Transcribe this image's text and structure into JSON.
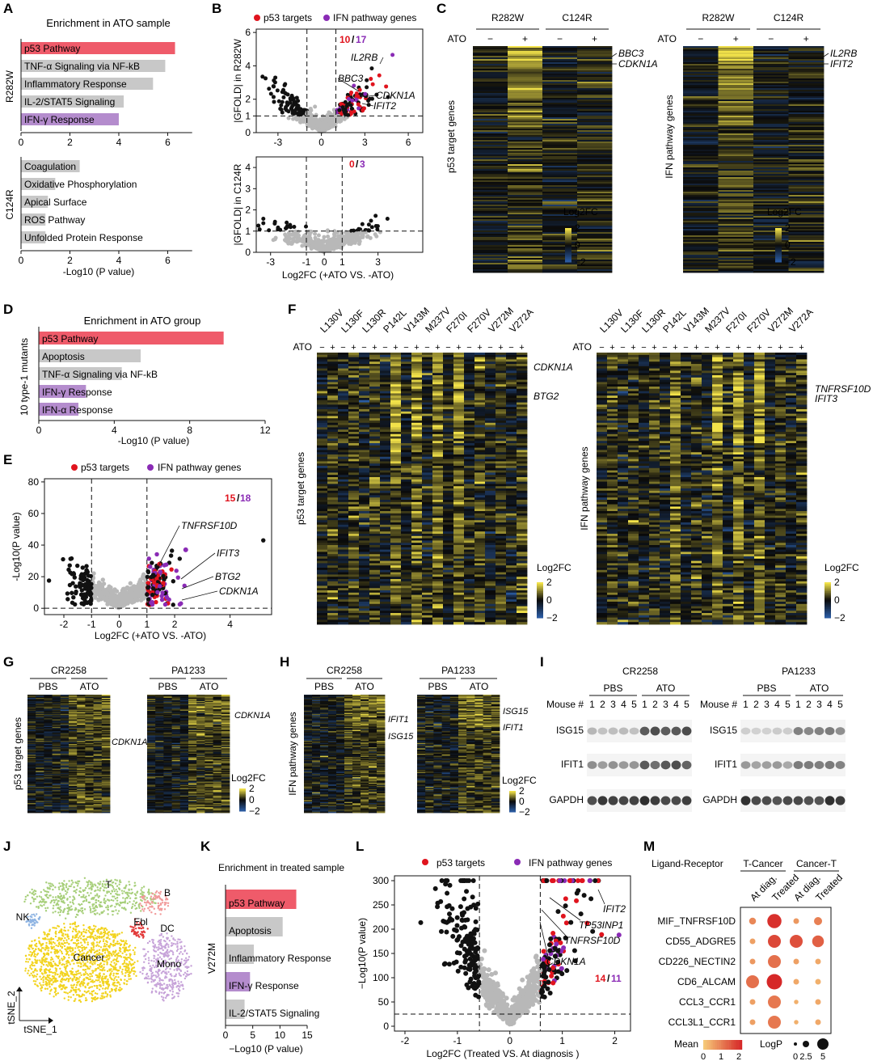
{
  "panel_letters": [
    "A",
    "B",
    "C",
    "D",
    "E",
    "F",
    "G",
    "H",
    "I",
    "J",
    "K",
    "L",
    "M"
  ],
  "colors": {
    "red_bar": "#ef5b6a",
    "gray_bar": "#c8c8c8",
    "purple_bar": "#b48ccd",
    "p53_point": "#e0141e",
    "ifn_point": "#8a2bb5",
    "other_point": "#b8b8b8",
    "sig_point": "#111111",
    "heat_low": "#2a5aa0",
    "heat_mid": "#0a0a0a",
    "heat_high": "#f2e24a"
  },
  "chart_data": [
    {
      "id": "A",
      "type": "bar",
      "title": "Enrichment in ATO sample",
      "xlabel": "-Log10 (P value)",
      "xlim": [
        0,
        7
      ],
      "xticks": [
        0,
        2,
        4,
        6
      ],
      "groups": [
        {
          "name": "R282W",
          "categories": [
            "p53 Pathway",
            "TNF-α Signaling via NF-kB",
            "Inflammatory Response",
            "IL-2/STAT5 Signaling",
            "IFN-γ Response"
          ],
          "values": [
            6.3,
            5.9,
            5.4,
            4.2,
            4.0
          ],
          "colors": [
            "red",
            "gray",
            "gray",
            "gray",
            "purple"
          ]
        },
        {
          "name": "C124R",
          "categories": [
            "Coagulation",
            "Oxidative Phosphorylation",
            "Apical Surface",
            "ROS Pathway",
            "Unfolded Protein Response"
          ],
          "values": [
            2.4,
            1.4,
            1.1,
            1.0,
            1.0
          ],
          "colors": [
            "gray",
            "gray",
            "gray",
            "gray",
            "gray"
          ]
        }
      ]
    },
    {
      "id": "B",
      "type": "scatter",
      "legend": [
        "p53 targets",
        "IFN pathway genes"
      ],
      "xlabel": "Log2FC (+ATO VS. -ATO)",
      "plots": [
        {
          "ylabel": "|GFOLD| in R282W",
          "xlim": [
            -4.5,
            7
          ],
          "ylim": [
            0,
            6.2
          ],
          "xticks": [
            -3,
            0,
            3,
            6
          ],
          "yticks": [
            0,
            1,
            2,
            4,
            6
          ],
          "hline": 1,
          "vlines": [
            -1,
            1
          ],
          "count_p53": "10",
          "count_sep": "/",
          "count_ifn": "17",
          "labels": [
            "BBC3",
            "CDKN1A",
            "IL2RB",
            "IFIT2"
          ]
        },
        {
          "ylabel": "|GFOLD| in C124R",
          "xlim": [
            -3.8,
            5.5
          ],
          "ylim": [
            0,
            4.5
          ],
          "xticks": [
            -3,
            -1,
            0,
            1,
            3
          ],
          "yticks": [
            0,
            1,
            2,
            3,
            4
          ],
          "hline": 1,
          "vlines": [
            -1,
            1
          ],
          "count_p53": "0",
          "count_sep": "/",
          "count_ifn": "3"
        }
      ]
    },
    {
      "id": "C",
      "type": "heatmap",
      "heatmaps": [
        {
          "columns": [
            "R282W",
            "C124R"
          ],
          "treat": [
            "−",
            "+",
            "−",
            "+"
          ],
          "row_label": "p53 target genes",
          "genes": [
            "BBC3",
            "CDKN1A"
          ]
        },
        {
          "columns": [
            "R282W",
            "C124R"
          ],
          "treat": [
            "−",
            "+",
            "−",
            "+"
          ],
          "row_label": "IFN pathway genes",
          "genes": [
            "IL2RB",
            "IFIT2"
          ]
        }
      ],
      "row_header": "ATO",
      "scale_label": "Log2FC",
      "scale_ticks": [
        "2",
        "0",
        "−2"
      ]
    },
    {
      "id": "D",
      "type": "bar",
      "title": "Enrichment in ATO group",
      "ylabel": "10 type-1 mutants",
      "xlabel": "-Log10 (P value)",
      "xlim": [
        0,
        12
      ],
      "xticks": [
        0,
        4,
        8,
        12
      ],
      "categories": [
        "p53 Pathway",
        "Apoptosis",
        "TNF-α Signaling via NF-kB",
        "IFN-γ Response",
        "IFN-α Response"
      ],
      "values": [
        9.8,
        5.4,
        4.4,
        2.5,
        2.1
      ],
      "colors": [
        "red",
        "gray",
        "gray",
        "purple",
        "purple"
      ]
    },
    {
      "id": "E",
      "type": "scatter",
      "legend": [
        "p53 targets",
        "IFN pathway genes"
      ],
      "xlabel": "Log2FC (+ATO VS. -ATO)",
      "ylabel": "-Log10(P value)",
      "xlim": [
        -2.7,
        5.5
      ],
      "ylim": [
        -4,
        82
      ],
      "xticks": [
        -2,
        -1,
        0,
        1,
        2,
        4
      ],
      "yticks": [
        0,
        20,
        40,
        60,
        80
      ],
      "hline": 0,
      "vlines": [
        -1,
        1
      ],
      "count_p53": "15",
      "count_sep": "/",
      "count_ifn": "18",
      "labels": [
        "TNFRSF10D",
        "IFIT3",
        "BTG2",
        "CDKN1A"
      ]
    },
    {
      "id": "F",
      "type": "heatmap",
      "mutants": [
        "L130V",
        "L130F",
        "L130R",
        "P142L",
        "V143M",
        "M237V",
        "F270I",
        "F270V",
        "V272M",
        "V272A"
      ],
      "row_header": "ATO",
      "heatmaps": [
        {
          "row_label": "p53 target genes",
          "genes": [
            "CDKN1A",
            "BTG2"
          ]
        },
        {
          "row_label": "IFN pathway genes",
          "genes": [
            "TNFRSF10D",
            "IFIT3"
          ]
        }
      ],
      "scale_label": "Log2FC",
      "scale_ticks": [
        "2",
        "0",
        "−2"
      ]
    },
    {
      "id": "G",
      "type": "heatmap",
      "models": [
        "CR2258",
        "PA1233"
      ],
      "groups": [
        "PBS",
        "ATO"
      ],
      "row_label": "p53 target genes",
      "genes": [
        "CDKN1A",
        "CDKN1A"
      ],
      "scale_label": "Log2FC",
      "scale_ticks": [
        "2",
        "0",
        "−2"
      ]
    },
    {
      "id": "H",
      "type": "heatmap",
      "models": [
        "CR2258",
        "PA1233"
      ],
      "groups": [
        "PBS",
        "ATO"
      ],
      "row_label": "IFN pathway genes",
      "genes_left": [
        "IFIT1",
        "ISG15"
      ],
      "genes_right": [
        "ISG15",
        "IFIT1"
      ],
      "scale_label": "Log2FC",
      "scale_ticks": [
        "2",
        "0",
        "−2"
      ]
    },
    {
      "id": "I",
      "type": "table",
      "models": [
        "CR2258",
        "PA1233"
      ],
      "groups": [
        "PBS",
        "ATO"
      ],
      "mouse_label": "Mouse #",
      "mice": [
        "1",
        "2",
        "3",
        "4",
        "5",
        "1",
        "2",
        "3",
        "4",
        "5"
      ],
      "blots": [
        "ISG15",
        "IFIT1",
        "GAPDH"
      ]
    },
    {
      "id": "J",
      "type": "scatter",
      "clusters": [
        "T",
        "B",
        "NK",
        "Ebl",
        "DC",
        "Cancer",
        "Mono"
      ],
      "xlabel": "tSNE_1",
      "ylabel": "tSNE_2"
    },
    {
      "id": "K",
      "type": "bar",
      "title": "Enrichment in treated sample",
      "ylabel": "V272M",
      "xlabel": "−Log10 (P value)",
      "xlim": [
        0,
        15
      ],
      "xticks": [
        0,
        5,
        10,
        15
      ],
      "categories": [
        "p53 Pathway",
        "Apoptosis",
        "Inflammatory Response",
        "IFN-γ Response",
        "IL-2/STAT5 Signaling"
      ],
      "values": [
        13.0,
        10.5,
        5.2,
        4.5,
        3.5
      ],
      "colors": [
        "red",
        "gray",
        "gray",
        "purple",
        "gray"
      ]
    },
    {
      "id": "L",
      "type": "scatter",
      "legend": [
        "p53 targets",
        "IFN pathway genes"
      ],
      "xlabel": "Log2FC (Treated VS. At diagnosis )",
      "ylabel": "−Log10(P value)",
      "xlim": [
        -2.2,
        2.3
      ],
      "ylim": [
        -10,
        310
      ],
      "xticks": [
        -2,
        -1,
        0,
        1,
        2
      ],
      "yticks": [
        0,
        50,
        100,
        150,
        200,
        250,
        300
      ],
      "hline": 25,
      "vlines": [
        -0.58,
        0.58
      ],
      "count_p53": "14",
      "count_sep": "/",
      "count_ifn": "11",
      "labels": [
        "IFIT2",
        "TP53INP1",
        "TNFRSF10D",
        "CDKN1A"
      ]
    },
    {
      "id": "M",
      "type": "scatter",
      "header": "Ligand-Receptor",
      "groups": [
        "T-Cancer",
        "Cancer-T"
      ],
      "columns": [
        "At diag.",
        "Treated",
        "At diag.",
        "Treated"
      ],
      "rows": [
        "MIF_TNFRSF10D",
        "CD55_ADGRE5",
        "CD226_NECTIN2",
        "CD6_ALCAM",
        "CCL3_CCR1",
        "CCL3L1_CCR1"
      ],
      "mean": [
        [
          0.8,
          1.9,
          0.6,
          0.9
        ],
        [
          0.5,
          1.6,
          1.5,
          1.3
        ],
        [
          0.6,
          1.1,
          0.5,
          0.4
        ],
        [
          1.1,
          2.0,
          0.4,
          0.3
        ],
        [
          0.5,
          1.0,
          0.3,
          0.4
        ],
        [
          0.5,
          1.0,
          0.3,
          0.4
        ]
      ],
      "logp": [
        [
          1.5,
          4.5,
          1,
          2
        ],
        [
          1,
          4,
          4,
          3.5
        ],
        [
          1,
          4,
          1,
          1
        ],
        [
          4,
          5,
          1,
          1
        ],
        [
          1,
          4,
          0.5,
          1
        ],
        [
          1,
          4,
          0.5,
          1
        ]
      ],
      "mean_label": "Mean",
      "mean_ticks": [
        "0",
        "1",
        "2"
      ],
      "logp_label": "LogP",
      "logp_ticks": [
        "0",
        "2.5",
        "5"
      ]
    }
  ]
}
